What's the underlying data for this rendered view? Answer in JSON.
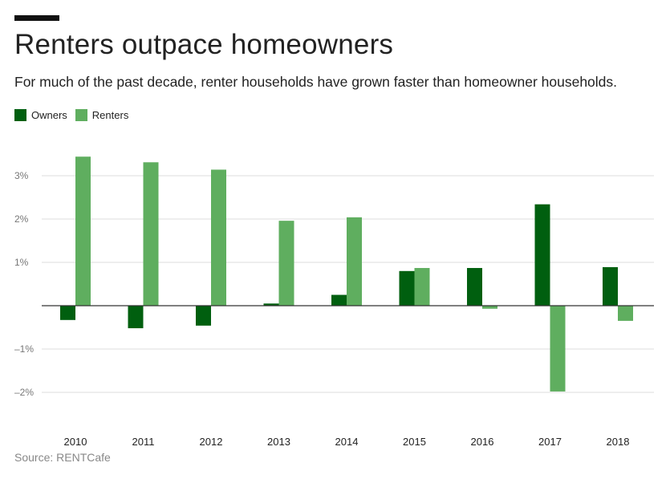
{
  "header": {
    "title": "Renters outpace homeowners",
    "subtitle": "For much of the past decade, renter households have grown faster than homeowner households."
  },
  "footer": {
    "source": "Source: RENTCafe"
  },
  "colors": {
    "owners": "#005f0f",
    "renters": "#5fae5f",
    "grid": "#dddddd",
    "zero": "#333333"
  },
  "chart_data": {
    "type": "bar",
    "title": "Renters outpace homeowners",
    "subtitle": "For much of the past decade, renter households have grown faster than homeowner households.",
    "categories": [
      "2010",
      "2011",
      "2012",
      "2013",
      "2014",
      "2015",
      "2016",
      "2017",
      "2018"
    ],
    "series": [
      {
        "name": "Owners",
        "values": [
          -0.33,
          -0.52,
          -0.46,
          0.05,
          0.25,
          0.8,
          0.87,
          2.34,
          0.89
        ]
      },
      {
        "name": "Renters",
        "values": [
          3.44,
          3.31,
          3.14,
          1.96,
          2.04,
          0.87,
          -0.07,
          -1.98,
          -0.35
        ]
      }
    ],
    "ylim": [
      -2.9,
      4.0
    ],
    "yticks": [
      -2,
      -1,
      1,
      2,
      3
    ],
    "ytick_labels": [
      "–2%",
      "–1%",
      "1%",
      "2%",
      "3%"
    ],
    "xlabel": "",
    "ylabel": "",
    "grid": true,
    "legend": "top-left"
  }
}
